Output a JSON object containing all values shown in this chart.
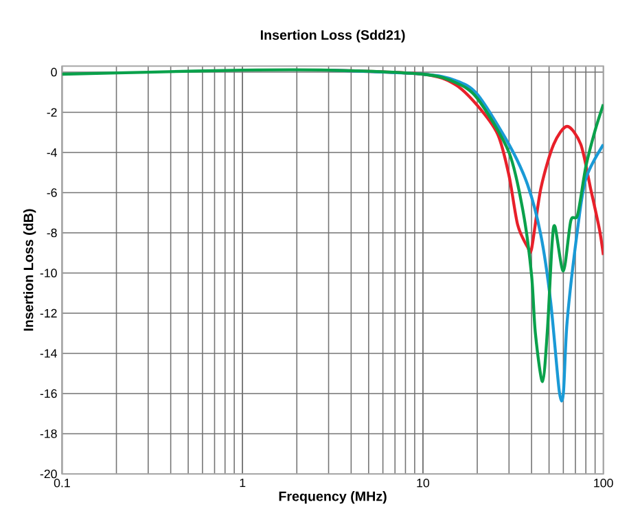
{
  "chart_data": {
    "type": "line",
    "title": "Insertion Loss (Sdd21)",
    "xlabel": "Frequency (MHz)",
    "ylabel": "Insertion Loss (dB)",
    "log": "x",
    "grid": true,
    "line_style": "solid",
    "marker": "none",
    "xlim": [
      0.1,
      100
    ],
    "ylim": [
      -20,
      0.3
    ],
    "xticks": [
      0.1,
      1,
      10,
      100
    ],
    "yticks": [
      0,
      -2,
      -4,
      -6,
      -8,
      -10,
      -12,
      -14,
      -16,
      -18,
      -20
    ],
    "series": [
      {
        "color": "#e8202a",
        "x": [
          3,
          10,
          15,
          20,
          26,
          30,
          33.5,
          38,
          40,
          45,
          53,
          63,
          75,
          85,
          95,
          100
        ],
        "values": [
          0.1,
          -0.1,
          -0.6,
          -1.65,
          -3.1,
          -5.15,
          -7.6,
          -8.7,
          -8.8,
          -5.8,
          -3.6,
          -2.7,
          -3.6,
          -5.8,
          -7.8,
          -9.1
        ]
      },
      {
        "color": "#1a9ad6",
        "x": [
          3,
          10,
          15,
          20,
          30,
          38,
          45,
          51,
          57,
          60,
          63,
          72,
          80,
          100
        ],
        "values": [
          0.1,
          -0.1,
          -0.4,
          -1.1,
          -3.6,
          -5.6,
          -8.1,
          -11.4,
          -15.9,
          -16,
          -12.4,
          -7.8,
          -5.3,
          -3.6
        ]
      },
      {
        "color": "#0aa14b",
        "x": [
          0.1,
          0.3,
          1,
          3,
          10,
          15,
          20,
          30,
          36,
          40,
          42,
          46,
          49,
          52,
          54,
          60,
          66,
          72,
          80,
          90,
          100
        ],
        "values": [
          -0.1,
          0,
          0.1,
          0.1,
          -0.1,
          -0.5,
          -1.3,
          -4,
          -7,
          -10.1,
          -13,
          -15.4,
          -12.8,
          -8.5,
          -7.7,
          -9.9,
          -7.4,
          -7.1,
          -4.7,
          -2.9,
          -1.6
        ]
      }
    ]
  }
}
